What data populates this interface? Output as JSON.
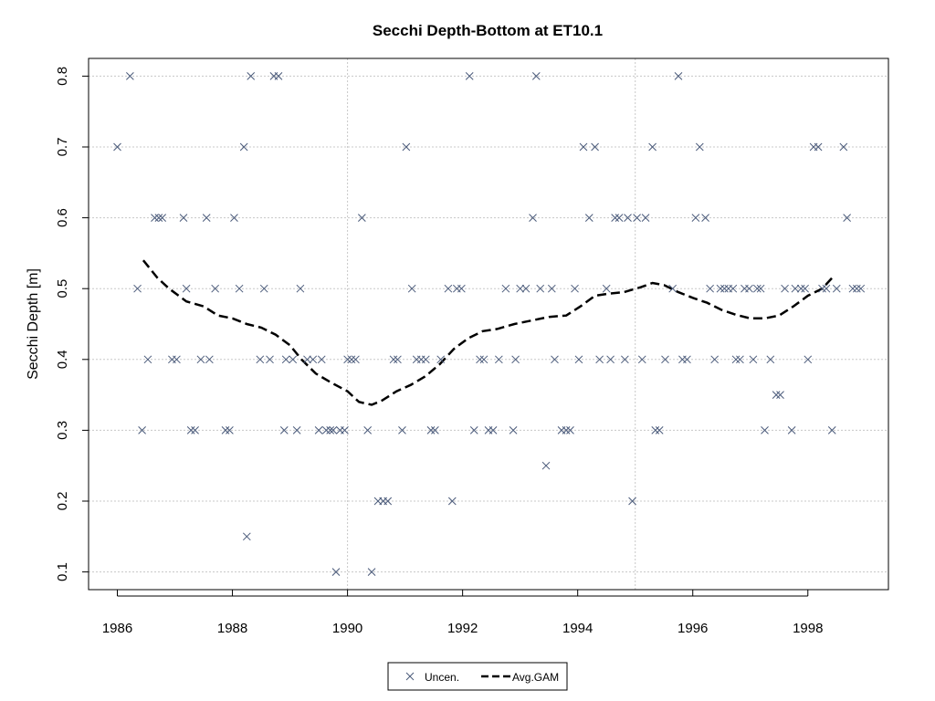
{
  "chart_data": {
    "type": "scatter",
    "title": "Secchi Depth-Bottom at ET10.1",
    "xlabel": "",
    "ylabel": "Secchi Depth [m]",
    "xlim": [
      1985.5,
      1999.4
    ],
    "ylim": [
      0.075,
      0.825
    ],
    "xticks": [
      1986,
      1988,
      1990,
      1992,
      1994,
      1996,
      1998
    ],
    "yticks": [
      0.1,
      0.2,
      0.3,
      0.4,
      0.5,
      0.6,
      0.7,
      0.8
    ],
    "grid": true,
    "legend_position": "bottom",
    "colors": {
      "points": "#4a5a7a",
      "line": "#000000",
      "grid": "#c8c8c8"
    },
    "series": [
      {
        "name": "Uncen.",
        "kind": "points",
        "marker": "x",
        "points": [
          [
            1986.0,
            0.7
          ],
          [
            1986.22,
            0.8
          ],
          [
            1986.35,
            0.5
          ],
          [
            1986.43,
            0.3
          ],
          [
            1986.53,
            0.4
          ],
          [
            1986.65,
            0.6
          ],
          [
            1986.72,
            0.6
          ],
          [
            1986.78,
            0.6
          ],
          [
            1986.95,
            0.4
          ],
          [
            1987.03,
            0.4
          ],
          [
            1987.15,
            0.6
          ],
          [
            1987.2,
            0.5
          ],
          [
            1987.28,
            0.3
          ],
          [
            1987.35,
            0.3
          ],
          [
            1987.45,
            0.4
          ],
          [
            1987.55,
            0.6
          ],
          [
            1987.6,
            0.4
          ],
          [
            1987.7,
            0.5
          ],
          [
            1987.88,
            0.3
          ],
          [
            1987.95,
            0.3
          ],
          [
            1988.03,
            0.6
          ],
          [
            1988.12,
            0.5
          ],
          [
            1988.2,
            0.7
          ],
          [
            1988.25,
            0.15
          ],
          [
            1988.32,
            0.8
          ],
          [
            1988.48,
            0.4
          ],
          [
            1988.55,
            0.5
          ],
          [
            1988.65,
            0.4
          ],
          [
            1988.72,
            0.8
          ],
          [
            1988.8,
            0.8
          ],
          [
            1988.9,
            0.3
          ],
          [
            1988.93,
            0.4
          ],
          [
            1989.05,
            0.4
          ],
          [
            1989.12,
            0.3
          ],
          [
            1989.18,
            0.5
          ],
          [
            1989.3,
            0.4
          ],
          [
            1989.4,
            0.4
          ],
          [
            1989.5,
            0.3
          ],
          [
            1989.55,
            0.4
          ],
          [
            1989.63,
            0.3
          ],
          [
            1989.7,
            0.3
          ],
          [
            1989.75,
            0.3
          ],
          [
            1989.8,
            0.1
          ],
          [
            1989.87,
            0.3
          ],
          [
            1989.95,
            0.3
          ],
          [
            1990.0,
            0.4
          ],
          [
            1990.07,
            0.4
          ],
          [
            1990.14,
            0.4
          ],
          [
            1990.25,
            0.6
          ],
          [
            1990.35,
            0.3
          ],
          [
            1990.42,
            0.1
          ],
          [
            1990.53,
            0.2
          ],
          [
            1990.62,
            0.2
          ],
          [
            1990.7,
            0.2
          ],
          [
            1990.8,
            0.4
          ],
          [
            1990.87,
            0.4
          ],
          [
            1990.95,
            0.3
          ],
          [
            1991.02,
            0.7
          ],
          [
            1991.12,
            0.5
          ],
          [
            1991.2,
            0.4
          ],
          [
            1991.28,
            0.4
          ],
          [
            1991.36,
            0.4
          ],
          [
            1991.45,
            0.3
          ],
          [
            1991.52,
            0.3
          ],
          [
            1991.62,
            0.4
          ],
          [
            1991.75,
            0.5
          ],
          [
            1991.82,
            0.2
          ],
          [
            1991.9,
            0.5
          ],
          [
            1991.98,
            0.5
          ],
          [
            1992.12,
            0.8
          ],
          [
            1992.2,
            0.3
          ],
          [
            1992.3,
            0.4
          ],
          [
            1992.37,
            0.4
          ],
          [
            1992.45,
            0.3
          ],
          [
            1992.53,
            0.3
          ],
          [
            1992.63,
            0.4
          ],
          [
            1992.75,
            0.5
          ],
          [
            1992.88,
            0.3
          ],
          [
            1992.92,
            0.4
          ],
          [
            1993.0,
            0.5
          ],
          [
            1993.1,
            0.5
          ],
          [
            1993.22,
            0.6
          ],
          [
            1993.28,
            0.8
          ],
          [
            1993.35,
            0.5
          ],
          [
            1993.45,
            0.25
          ],
          [
            1993.55,
            0.5
          ],
          [
            1993.6,
            0.4
          ],
          [
            1993.72,
            0.3
          ],
          [
            1993.8,
            0.3
          ],
          [
            1993.87,
            0.3
          ],
          [
            1993.95,
            0.5
          ],
          [
            1994.02,
            0.4
          ],
          [
            1994.1,
            0.7
          ],
          [
            1994.2,
            0.6
          ],
          [
            1994.3,
            0.7
          ],
          [
            1994.38,
            0.4
          ],
          [
            1994.5,
            0.5
          ],
          [
            1994.57,
            0.4
          ],
          [
            1994.65,
            0.6
          ],
          [
            1994.72,
            0.6
          ],
          [
            1994.82,
            0.4
          ],
          [
            1994.87,
            0.6
          ],
          [
            1994.95,
            0.2
          ],
          [
            1995.03,
            0.6
          ],
          [
            1995.12,
            0.4
          ],
          [
            1995.18,
            0.6
          ],
          [
            1995.3,
            0.7
          ],
          [
            1995.35,
            0.3
          ],
          [
            1995.42,
            0.3
          ],
          [
            1995.52,
            0.4
          ],
          [
            1995.65,
            0.5
          ],
          [
            1995.75,
            0.8
          ],
          [
            1995.82,
            0.4
          ],
          [
            1995.9,
            0.4
          ],
          [
            1996.05,
            0.6
          ],
          [
            1996.12,
            0.7
          ],
          [
            1996.22,
            0.6
          ],
          [
            1996.3,
            0.5
          ],
          [
            1996.38,
            0.4
          ],
          [
            1996.48,
            0.5
          ],
          [
            1996.55,
            0.5
          ],
          [
            1996.62,
            0.5
          ],
          [
            1996.7,
            0.5
          ],
          [
            1996.75,
            0.4
          ],
          [
            1996.82,
            0.4
          ],
          [
            1996.9,
            0.5
          ],
          [
            1996.98,
            0.5
          ],
          [
            1997.05,
            0.4
          ],
          [
            1997.12,
            0.5
          ],
          [
            1997.18,
            0.5
          ],
          [
            1997.25,
            0.3
          ],
          [
            1997.35,
            0.4
          ],
          [
            1997.45,
            0.35
          ],
          [
            1997.52,
            0.35
          ],
          [
            1997.6,
            0.5
          ],
          [
            1997.72,
            0.3
          ],
          [
            1997.78,
            0.5
          ],
          [
            1997.88,
            0.5
          ],
          [
            1997.95,
            0.5
          ],
          [
            1998.0,
            0.4
          ],
          [
            1998.1,
            0.7
          ],
          [
            1998.18,
            0.7
          ],
          [
            1998.25,
            0.5
          ],
          [
            1998.32,
            0.5
          ],
          [
            1998.42,
            0.3
          ],
          [
            1998.5,
            0.5
          ],
          [
            1998.62,
            0.7
          ],
          [
            1998.68,
            0.6
          ],
          [
            1998.78,
            0.5
          ],
          [
            1998.85,
            0.5
          ],
          [
            1998.92,
            0.5
          ]
        ]
      },
      {
        "name": "Avg.GAM",
        "kind": "line",
        "style": "dashed",
        "points": [
          [
            1986.45,
            0.54
          ],
          [
            1986.7,
            0.515
          ],
          [
            1986.9,
            0.5
          ],
          [
            1987.2,
            0.482
          ],
          [
            1987.5,
            0.475
          ],
          [
            1987.75,
            0.462
          ],
          [
            1988.0,
            0.458
          ],
          [
            1988.25,
            0.45
          ],
          [
            1988.5,
            0.445
          ],
          [
            1988.75,
            0.435
          ],
          [
            1989.0,
            0.42
          ],
          [
            1989.2,
            0.4
          ],
          [
            1989.45,
            0.38
          ],
          [
            1989.7,
            0.368
          ],
          [
            1990.0,
            0.355
          ],
          [
            1990.2,
            0.34
          ],
          [
            1990.42,
            0.336
          ],
          [
            1990.6,
            0.342
          ],
          [
            1990.85,
            0.355
          ],
          [
            1991.1,
            0.364
          ],
          [
            1991.35,
            0.376
          ],
          [
            1991.6,
            0.393
          ],
          [
            1991.85,
            0.415
          ],
          [
            1992.1,
            0.43
          ],
          [
            1992.35,
            0.44
          ],
          [
            1992.6,
            0.443
          ],
          [
            1992.9,
            0.45
          ],
          [
            1993.2,
            0.455
          ],
          [
            1993.5,
            0.46
          ],
          [
            1993.8,
            0.462
          ],
          [
            1994.05,
            0.475
          ],
          [
            1994.3,
            0.49
          ],
          [
            1994.55,
            0.493
          ],
          [
            1994.8,
            0.495
          ],
          [
            1995.1,
            0.502
          ],
          [
            1995.3,
            0.508
          ],
          [
            1995.5,
            0.505
          ],
          [
            1995.75,
            0.495
          ],
          [
            1996.0,
            0.487
          ],
          [
            1996.25,
            0.48
          ],
          [
            1996.5,
            0.47
          ],
          [
            1996.75,
            0.463
          ],
          [
            1997.0,
            0.458
          ],
          [
            1997.25,
            0.458
          ],
          [
            1997.5,
            0.462
          ],
          [
            1997.75,
            0.475
          ],
          [
            1998.0,
            0.49
          ],
          [
            1998.25,
            0.5
          ],
          [
            1998.43,
            0.516
          ]
        ]
      }
    ]
  }
}
